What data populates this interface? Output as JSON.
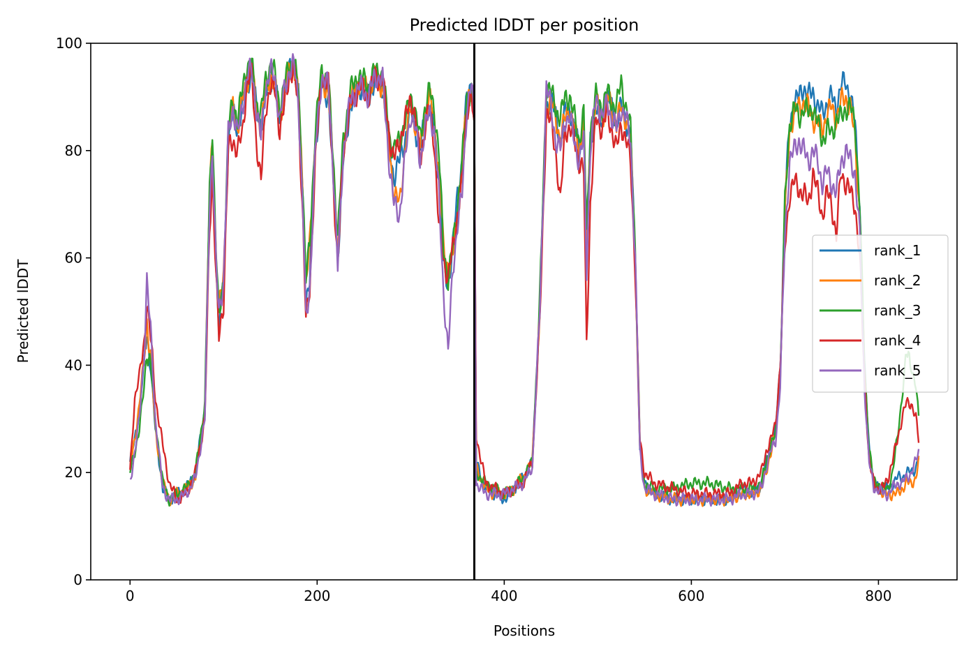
{
  "chart_data": {
    "type": "line",
    "title": "Predicted lDDT per position",
    "xlabel": "Positions",
    "ylabel": "Predicted lDDT",
    "xlim": [
      -42,
      884
    ],
    "ylim": [
      0,
      100
    ],
    "xticks": [
      0,
      200,
      400,
      600,
      800
    ],
    "yticks": [
      0,
      20,
      40,
      60,
      80,
      100
    ],
    "grid": false,
    "legend_position": "center-right",
    "separator_x": 368,
    "series_anchor_x": [
      0,
      5,
      10,
      15,
      18,
      22,
      27,
      35,
      42,
      50,
      60,
      70,
      80,
      85,
      88,
      92,
      95,
      100,
      105,
      110,
      115,
      120,
      125,
      130,
      135,
      140,
      145,
      150,
      155,
      160,
      165,
      170,
      175,
      180,
      185,
      188,
      192,
      198,
      205,
      212,
      218,
      222,
      228,
      235,
      245,
      255,
      262,
      270,
      278,
      282,
      288,
      295,
      300,
      305,
      310,
      315,
      320,
      325,
      330,
      335,
      340,
      345,
      350,
      355,
      360,
      365,
      368,
      370,
      380,
      390,
      400,
      410,
      420,
      430,
      438,
      445,
      450,
      455,
      460,
      465,
      470,
      475,
      480,
      485,
      488,
      492,
      498,
      505,
      510,
      515,
      520,
      525,
      530,
      535,
      540,
      545,
      550,
      560,
      580,
      600,
      620,
      640,
      655,
      665,
      675,
      680,
      685,
      690,
      695,
      700,
      705,
      710,
      715,
      720,
      725,
      730,
      735,
      740,
      745,
      750,
      755,
      760,
      765,
      770,
      775,
      780,
      785,
      790,
      795,
      800,
      805,
      810,
      815,
      820,
      825,
      830,
      835,
      840,
      843
    ],
    "series": [
      {
        "name": "rank_1",
        "color": "#1f77b4",
        "values": [
          22,
          26,
          32,
          40,
          46,
          40,
          28,
          17,
          15,
          16,
          17,
          20,
          32,
          70,
          80,
          58,
          47,
          55,
          82,
          87,
          84,
          88,
          92,
          95,
          88,
          85,
          90,
          93,
          92,
          86,
          90,
          95,
          96,
          90,
          70,
          52,
          55,
          80,
          92,
          90,
          72,
          60,
          78,
          88,
          92,
          90,
          93,
          92,
          80,
          75,
          78,
          83,
          88,
          84,
          80,
          86,
          88,
          84,
          76,
          58,
          55,
          62,
          72,
          78,
          90,
          93,
          85,
          22,
          17,
          16,
          15,
          17,
          19,
          22,
          50,
          88,
          90,
          86,
          82,
          87,
          88,
          84,
          80,
          85,
          62,
          82,
          88,
          85,
          90,
          88,
          85,
          88,
          86,
          82,
          60,
          25,
          18,
          16,
          15,
          15,
          15,
          15,
          17,
          16,
          18,
          22,
          25,
          28,
          40,
          70,
          85,
          89,
          90,
          92,
          90,
          91,
          88,
          87,
          89,
          90,
          88,
          92,
          93,
          90,
          85,
          70,
          40,
          25,
          18,
          17,
          17,
          17,
          18,
          19,
          19,
          20,
          20,
          21,
          23
        ]
      },
      {
        "name": "rank_2",
        "color": "#ff7f0e",
        "values": [
          21,
          26,
          33,
          41,
          48,
          42,
          28,
          18,
          15,
          16,
          17,
          19,
          32,
          72,
          82,
          60,
          50,
          57,
          83,
          88,
          84,
          89,
          93,
          95,
          88,
          84,
          91,
          94,
          92,
          86,
          91,
          95,
          96,
          90,
          72,
          55,
          62,
          82,
          93,
          91,
          74,
          62,
          80,
          89,
          93,
          91,
          94,
          92,
          79,
          72,
          70,
          82,
          88,
          85,
          80,
          86,
          90,
          86,
          76,
          62,
          58,
          60,
          68,
          76,
          90,
          92,
          86,
          21,
          17,
          16,
          16,
          17,
          19,
          22,
          50,
          88,
          89,
          86,
          82,
          86,
          88,
          84,
          80,
          85,
          62,
          82,
          89,
          86,
          90,
          88,
          85,
          88,
          86,
          82,
          60,
          24,
          17,
          16,
          15,
          15,
          15,
          15,
          16,
          16,
          17,
          20,
          24,
          27,
          38,
          68,
          84,
          87,
          88,
          89,
          88,
          86,
          85,
          84,
          87,
          88,
          86,
          89,
          90,
          88,
          82,
          68,
          38,
          24,
          17,
          17,
          16,
          16,
          16,
          16,
          17,
          18,
          18,
          19,
          22
        ]
      },
      {
        "name": "rank_3",
        "color": "#2ca02c",
        "values": [
          20,
          24,
          28,
          36,
          43,
          40,
          30,
          18,
          15,
          16,
          17,
          20,
          33,
          72,
          84,
          62,
          48,
          56,
          84,
          89,
          86,
          91,
          96,
          96,
          89,
          87,
          93,
          96,
          94,
          88,
          92,
          96,
          97,
          91,
          72,
          56,
          62,
          84,
          95,
          93,
          76,
          64,
          82,
          91,
          94,
          92,
          95,
          94,
          82,
          80,
          82,
          86,
          90,
          87,
          82,
          88,
          91,
          88,
          80,
          62,
          56,
          62,
          70,
          78,
          90,
          91,
          85,
          20,
          18,
          17,
          16,
          17,
          19,
          22,
          52,
          92,
          91,
          88,
          86,
          90,
          90,
          86,
          82,
          87,
          64,
          84,
          90,
          88,
          91,
          89,
          88,
          93,
          88,
          84,
          62,
          25,
          18,
          17,
          17,
          18,
          18,
          17,
          17,
          17,
          18,
          22,
          25,
          27,
          38,
          70,
          85,
          88,
          86,
          88,
          87,
          88,
          85,
          82,
          84,
          83,
          86,
          86,
          88,
          88,
          85,
          70,
          40,
          25,
          18,
          18,
          17,
          17,
          20,
          26,
          34,
          42,
          40,
          36,
          30
        ]
      },
      {
        "name": "rank_4",
        "color": "#d62728",
        "values": [
          20,
          34,
          38,
          44,
          52,
          45,
          34,
          25,
          18,
          15,
          16,
          20,
          30,
          65,
          76,
          56,
          45,
          52,
          80,
          82,
          80,
          83,
          93,
          94,
          82,
          74,
          88,
          92,
          91,
          84,
          88,
          94,
          95,
          88,
          66,
          48,
          54,
          78,
          94,
          92,
          72,
          58,
          80,
          88,
          92,
          90,
          94,
          93,
          82,
          78,
          82,
          86,
          90,
          86,
          78,
          84,
          88,
          82,
          66,
          60,
          56,
          62,
          68,
          74,
          88,
          90,
          83,
          27,
          18,
          17,
          16,
          17,
          18,
          22,
          48,
          87,
          85,
          80,
          70,
          84,
          84,
          82,
          78,
          76,
          44,
          70,
          86,
          84,
          87,
          84,
          80,
          85,
          82,
          78,
          58,
          26,
          20,
          18,
          17,
          16,
          16,
          16,
          18,
          18,
          20,
          24,
          26,
          29,
          40,
          62,
          72,
          74,
          73,
          72,
          70,
          76,
          72,
          68,
          72,
          70,
          64,
          76,
          74,
          72,
          70,
          60,
          38,
          22,
          18,
          17,
          17,
          19,
          22,
          26,
          30,
          33,
          33,
          30,
          26
        ]
      },
      {
        "name": "rank_5",
        "color": "#9467bd",
        "values": [
          18,
          24,
          30,
          42,
          56,
          46,
          30,
          17,
          15,
          15,
          16,
          19,
          30,
          70,
          80,
          58,
          50,
          56,
          83,
          88,
          83,
          88,
          94,
          95,
          88,
          82,
          92,
          95,
          93,
          86,
          91,
          95,
          96,
          89,
          68,
          48,
          54,
          80,
          94,
          92,
          74,
          58,
          80,
          89,
          92,
          90,
          94,
          93,
          76,
          70,
          68,
          80,
          87,
          84,
          78,
          84,
          87,
          84,
          72,
          54,
          42,
          58,
          66,
          72,
          88,
          92,
          86,
          18,
          16,
          16,
          16,
          17,
          18,
          21,
          50,
          92,
          88,
          82,
          80,
          86,
          86,
          82,
          78,
          82,
          58,
          80,
          90,
          86,
          89,
          86,
          84,
          88,
          86,
          82,
          60,
          24,
          17,
          16,
          15,
          15,
          15,
          15,
          16,
          16,
          17,
          21,
          24,
          26,
          36,
          64,
          78,
          80,
          82,
          80,
          78,
          80,
          78,
          74,
          76,
          74,
          72,
          78,
          80,
          78,
          76,
          64,
          36,
          22,
          17,
          17,
          16,
          16,
          17,
          18,
          18,
          19,
          20,
          22,
          24
        ]
      }
    ]
  }
}
